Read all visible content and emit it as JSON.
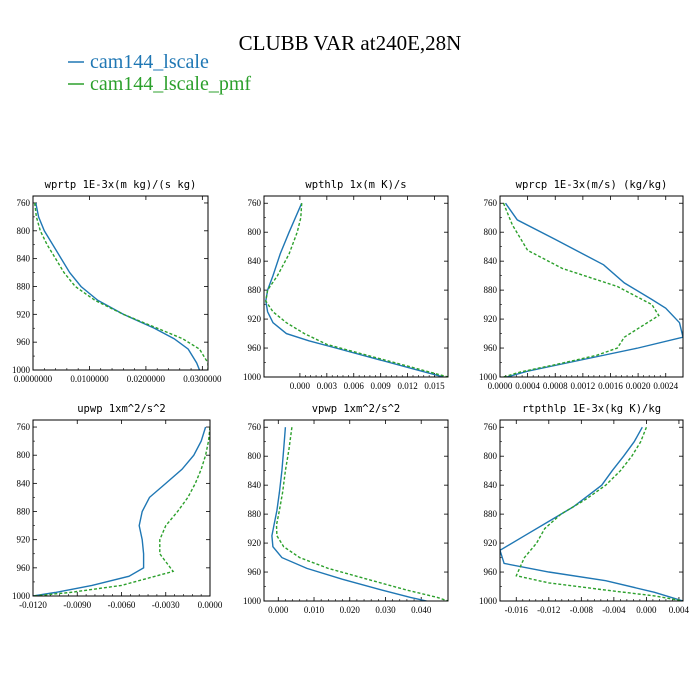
{
  "chart_data": {
    "title": "CLUBB VAR at240E,28N",
    "legend": [
      {
        "name": "cam144_lscale",
        "color": "#1f77b4",
        "dash": false
      },
      {
        "name": "cam144_lscale_pmf",
        "color": "#2ca02c",
        "dash": true
      }
    ],
    "panels": [
      {
        "type": "line",
        "title": "wprtp  1E-3x(m kg)/(s kg)",
        "xlim": [
          0,
          0.031
        ],
        "xticks": [
          0,
          0.01,
          0.02,
          0.03
        ],
        "xticklabels": [
          "0.0000000",
          "0.0100000",
          "0.0200000",
          "0.0300000"
        ],
        "ylim": [
          1000,
          750
        ],
        "yticks": [
          760,
          800,
          840,
          880,
          920,
          960,
          1000
        ],
        "series": [
          {
            "name": "cam144_lscale",
            "x": [
              0.0005,
              0.001,
              0.002,
              0.0035,
              0.005,
              0.0065,
              0.0085,
              0.0115,
              0.016,
              0.0215,
              0.025,
              0.0275,
              0.029,
              0.0295
            ],
            "y": [
              760,
              780,
              800,
              820,
              840,
              860,
              880,
              900,
              920,
              940,
              955,
              970,
              990,
              1000
            ]
          },
          {
            "name": "cam144_lscale_pmf",
            "x": [
              0.0003,
              0.0006,
              0.0013,
              0.0025,
              0.004,
              0.0055,
              0.0075,
              0.011,
              0.016,
              0.022,
              0.0265,
              0.0295,
              0.031,
              0.031
            ],
            "y": [
              760,
              780,
              800,
              820,
              840,
              860,
              880,
              900,
              920,
              940,
              955,
              970,
              990,
              1000
            ]
          }
        ]
      },
      {
        "type": "line",
        "title": "wpthlp  1x(m K)/s",
        "xlim": [
          -0.004,
          0.0165
        ],
        "xticks": [
          0,
          0.003,
          0.006,
          0.009,
          0.012,
          0.015
        ],
        "xticklabels": [
          "0.000",
          "0.003",
          "0.006",
          "0.009",
          "0.012",
          "0.015"
        ],
        "ylim": [
          1000,
          750
        ],
        "yticks": [
          760,
          800,
          840,
          880,
          920,
          960,
          1000
        ],
        "series": [
          {
            "name": "cam144_lscale",
            "x": [
              0.0002,
              -0.0005,
              -0.0012,
              -0.0022,
              -0.003,
              -0.0036,
              -0.0038,
              -0.0036,
              -0.003,
              -0.0015,
              0.001,
              0.004,
              0.0085,
              0.013,
              0.016
            ],
            "y": [
              760,
              780,
              800,
              830,
              860,
              880,
              895,
              910,
              925,
              940,
              950,
              960,
              975,
              990,
              1000
            ]
          },
          {
            "name": "cam144_lscale_pmf",
            "x": [
              0.0002,
              0.0001,
              -0.0003,
              -0.0012,
              -0.0025,
              -0.0036,
              -0.0038,
              -0.003,
              -0.0015,
              0.0005,
              0.003,
              0.0075,
              0.012,
              0.0165
            ],
            "y": [
              760,
              780,
              800,
              830,
              860,
              880,
              895,
              910,
              925,
              940,
              955,
              970,
              985,
              1000
            ]
          }
        ]
      },
      {
        "type": "line",
        "title": "wprcp  1E-3x(m/s) (kg/kg)",
        "xlim": [
          0,
          0.00265
        ],
        "xticks": [
          0,
          0.0004,
          0.0008,
          0.0012,
          0.0016,
          0.002,
          0.0024
        ],
        "xticklabels": [
          "0.0000",
          "0.0004",
          "0.0008",
          "0.0012",
          "0.0016",
          "0.0020",
          "0.0024"
        ],
        "ylim": [
          1000,
          750
        ],
        "yticks": [
          760,
          800,
          840,
          880,
          920,
          960,
          1000
        ],
        "series": [
          {
            "name": "cam144_lscale",
            "x": [
              8e-05,
              0.00025,
              0.0008,
              0.0015,
              0.0018,
              0.0022,
              0.0024,
              0.0026,
              0.00265,
              0.002,
              0.001,
              0.0004,
              0.0001
            ],
            "y": [
              760,
              783,
              810,
              845,
              870,
              893,
              905,
              925,
              945,
              960,
              980,
              992,
              1000
            ]
          },
          {
            "name": "cam144_lscale_pmf",
            "x": [
              5e-05,
              0.00018,
              0.0004,
              0.0009,
              0.0017,
              0.0022,
              0.0023,
              0.0018,
              0.0017,
              0.0014,
              0.0008,
              0.0003,
              5e-05
            ],
            "y": [
              760,
              790,
              825,
              850,
              875,
              900,
              915,
              945,
              960,
              970,
              983,
              993,
              1000
            ]
          }
        ]
      },
      {
        "type": "line",
        "title": "upwp  1xm^2/s^2",
        "xlim": [
          -0.012,
          0
        ],
        "xticks": [
          -0.012,
          -0.009,
          -0.006,
          -0.003,
          0
        ],
        "xticklabels": [
          "-0.0120",
          "-0.0090",
          "-0.0060",
          "-0.0030",
          "0.0000"
        ],
        "ylim": [
          1000,
          750
        ],
        "yticks": [
          760,
          800,
          840,
          880,
          920,
          960,
          1000
        ],
        "series": [
          {
            "name": "cam144_lscale",
            "x": [
              -0.0003,
              -0.0006,
              -0.0011,
              -0.0019,
              -0.003,
              -0.0041,
              -0.0046,
              -0.0048,
              -0.0046,
              -0.0045,
              -0.0045,
              -0.0055,
              -0.008,
              -0.0105,
              -0.012
            ],
            "y": [
              760,
              780,
              800,
              820,
              840,
              860,
              880,
              900,
              920,
              940,
              960,
              972,
              985,
              995,
              1000
            ]
          },
          {
            "name": "cam144_lscale_pmf",
            "x": [
              0.0,
              -0.0001,
              -0.0003,
              -0.0006,
              -0.001,
              -0.0015,
              -0.0022,
              -0.003,
              -0.0034,
              -0.0034,
              -0.0025,
              -0.006,
              -0.0095,
              -0.012
            ],
            "y": [
              760,
              780,
              800,
              820,
              840,
              860,
              880,
              900,
              920,
              940,
              965,
              985,
              995,
              1000
            ]
          }
        ]
      },
      {
        "type": "line",
        "title": "vpwp  1xm^2/s^2",
        "xlim": [
          -0.004,
          0.0475
        ],
        "xticks": [
          0,
          0.01,
          0.02,
          0.03,
          0.04
        ],
        "xticklabels": [
          "0.000",
          "0.010",
          "0.020",
          "0.030",
          "0.040"
        ],
        "ylim": [
          1000,
          750
        ],
        "yticks": [
          760,
          800,
          840,
          880,
          920,
          960,
          1000
        ],
        "series": [
          {
            "name": "cam144_lscale",
            "x": [
              0.002,
              0.0015,
              0.001,
              0.0003,
              -0.0004,
              -0.0012,
              -0.0018,
              -0.0015,
              0.001,
              0.008,
              0.018,
              0.029,
              0.037,
              0.0415
            ],
            "y": [
              760,
              790,
              820,
              850,
              875,
              895,
              910,
              925,
              940,
              955,
              970,
              985,
              995,
              1000
            ]
          },
          {
            "name": "cam144_lscale_pmf",
            "x": [
              0.0038,
              0.003,
              0.002,
              0.0012,
              0.0003,
              -0.0005,
              -0.0004,
              0.0015,
              0.006,
              0.014,
              0.025,
              0.036,
              0.0445,
              0.0475
            ],
            "y": [
              760,
              790,
              820,
              850,
              875,
              895,
              910,
              925,
              940,
              955,
              970,
              985,
              995,
              1000
            ]
          }
        ]
      },
      {
        "type": "line",
        "title": "rtpthlp  1E-3x(kg K)/kg",
        "xlim": [
          -0.018,
          0.0045
        ],
        "xticks": [
          -0.016,
          -0.012,
          -0.008,
          -0.004,
          0,
          0.004
        ],
        "xticklabels": [
          "-0.016",
          "-0.012",
          "-0.008",
          "-0.004",
          "0.000",
          "0.004"
        ],
        "ylim": [
          1000,
          750
        ],
        "yticks": [
          760,
          800,
          840,
          880,
          920,
          960,
          1000
        ],
        "series": [
          {
            "name": "cam144_lscale",
            "x": [
              -0.0005,
              -0.0015,
              -0.0028,
              -0.0042,
              -0.0055,
              -0.007,
              -0.009,
              -0.012,
              -0.015,
              -0.018,
              -0.0175,
              -0.012,
              -0.005,
              0.001,
              0.0045
            ],
            "y": [
              760,
              780,
              800,
              820,
              840,
              853,
              870,
              890,
              910,
              930,
              948,
              960,
              972,
              988,
              1000
            ]
          },
          {
            "name": "cam144_lscale_pmf",
            "x": [
              0.0,
              -0.0007,
              -0.0018,
              -0.0032,
              -0.005,
              -0.0075,
              -0.0105,
              -0.0125,
              -0.0135,
              -0.015,
              -0.016,
              -0.012,
              -0.005,
              0.001,
              0.0045
            ],
            "y": [
              760,
              780,
              800,
              820,
              840,
              860,
              880,
              900,
              920,
              940,
              965,
              975,
              985,
              993,
              1000
            ]
          }
        ]
      }
    ]
  }
}
